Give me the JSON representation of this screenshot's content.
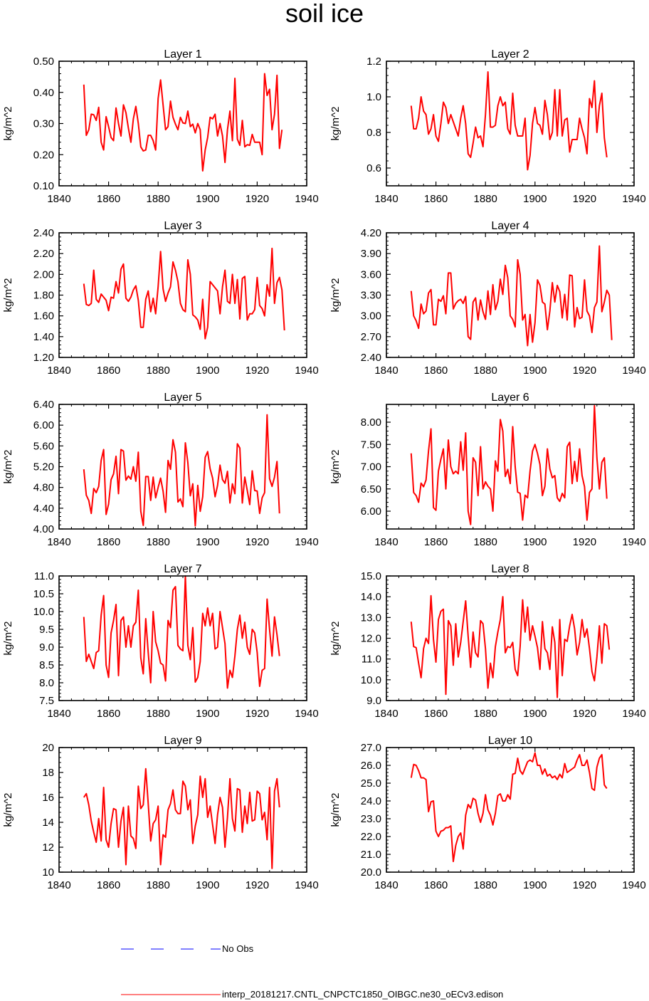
{
  "title": "soil ice",
  "colors": {
    "model": "#ff0000",
    "obs": "#0000ff",
    "axis": "#000000"
  },
  "legend": {
    "obs_label": "No Obs",
    "model_label": "interp_20181217.CNTL_CNPCTC1850_OIBGC.ne30_oECv3.edison"
  },
  "chart_data": [
    {
      "type": "line",
      "title": "Layer 1",
      "ylabel": "kg/m^2",
      "xlim": [
        1840,
        1940
      ],
      "xticks": [
        1840,
        1860,
        1880,
        1900,
        1920,
        1940
      ],
      "ylim": [
        0.1,
        0.5
      ],
      "yticks": [
        0.1,
        0.2,
        0.3,
        0.4,
        0.5
      ],
      "ydec": 2,
      "x_start": 1850,
      "values": [
        0.425,
        0.262,
        0.28,
        0.33,
        0.328,
        0.31,
        0.352,
        0.24,
        0.215,
        0.322,
        0.29,
        0.255,
        0.245,
        0.35,
        0.3,
        0.26,
        0.36,
        0.335,
        0.285,
        0.24,
        0.315,
        0.355,
        0.3,
        0.225,
        0.212,
        0.215,
        0.262,
        0.262,
        0.245,
        0.215,
        0.38,
        0.44,
        0.36,
        0.28,
        0.29,
        0.372,
        0.32,
        0.298,
        0.28,
        0.32,
        0.302,
        0.3,
        0.34,
        0.29,
        0.298,
        0.27,
        0.3,
        0.28,
        0.148,
        0.215,
        0.255,
        0.32,
        0.315,
        0.33,
        0.26,
        0.3,
        0.26,
        0.175,
        0.28,
        0.34,
        0.245,
        0.445,
        0.25,
        0.23,
        0.31,
        0.225,
        0.232,
        0.23,
        0.265,
        0.24,
        0.24,
        0.24,
        0.2,
        0.46,
        0.39,
        0.41,
        0.28,
        0.33,
        0.455,
        0.22,
        0.28
      ]
    },
    {
      "type": "line",
      "title": "Layer 2",
      "ylabel": "kg/m^2",
      "xlim": [
        1840,
        1940
      ],
      "xticks": [
        1840,
        1860,
        1880,
        1900,
        1920,
        1940
      ],
      "ylim": [
        0.5,
        1.2
      ],
      "yticks": [
        0.6,
        0.8,
        1.0,
        1.2
      ],
      "ydec": 1,
      "x_start": 1850,
      "values": [
        0.95,
        0.82,
        0.82,
        0.88,
        1.0,
        0.92,
        0.9,
        0.79,
        0.82,
        0.9,
        0.78,
        0.75,
        0.85,
        0.97,
        0.94,
        0.85,
        0.9,
        0.86,
        0.82,
        0.78,
        0.88,
        0.95,
        0.85,
        0.68,
        0.66,
        0.74,
        0.83,
        0.77,
        0.78,
        0.72,
        0.9,
        1.14,
        0.83,
        0.83,
        0.84,
        0.95,
        1.0,
        0.95,
        0.97,
        0.82,
        0.79,
        1.02,
        0.84,
        0.78,
        0.78,
        0.78,
        0.88,
        0.59,
        0.67,
        0.85,
        0.94,
        0.85,
        0.84,
        0.79,
        0.98,
        0.9,
        0.76,
        0.8,
        1.04,
        0.78,
        1.04,
        0.78,
        0.87,
        0.88,
        0.69,
        0.76,
        0.76,
        0.76,
        0.88,
        0.82,
        0.77,
        0.68,
        0.99,
        0.94,
        1.09,
        0.8,
        0.95,
        1.02,
        0.77,
        0.66
      ]
    },
    {
      "type": "line",
      "title": "Layer 3",
      "ylabel": "kg/m^2",
      "xlim": [
        1840,
        1940
      ],
      "xticks": [
        1840,
        1860,
        1880,
        1900,
        1920,
        1940
      ],
      "ylim": [
        1.2,
        2.4
      ],
      "yticks": [
        1.2,
        1.4,
        1.6,
        1.8,
        2.0,
        2.2,
        2.4
      ],
      "ydec": 2,
      "x_start": 1850,
      "values": [
        1.91,
        1.71,
        1.7,
        1.72,
        2.04,
        1.76,
        1.73,
        1.81,
        1.78,
        1.75,
        1.65,
        1.78,
        1.77,
        1.93,
        1.82,
        2.05,
        2.1,
        1.77,
        1.74,
        1.78,
        1.85,
        1.89,
        1.75,
        1.49,
        1.49,
        1.76,
        1.84,
        1.64,
        1.77,
        1.62,
        1.88,
        2.22,
        1.86,
        1.74,
        1.82,
        1.88,
        2.12,
        2.04,
        1.93,
        1.72,
        1.66,
        1.64,
        2.14,
        2.0,
        1.61,
        1.59,
        1.56,
        1.47,
        1.76,
        1.38,
        1.49,
        1.93,
        1.9,
        1.87,
        1.84,
        1.62,
        1.88,
        2.04,
        1.74,
        1.72,
        2.0,
        1.72,
        1.95,
        1.57,
        1.96,
        1.98,
        1.56,
        1.62,
        1.62,
        1.66,
        1.97,
        1.7,
        1.67,
        1.6,
        1.9,
        1.79,
        2.25,
        1.72,
        1.92,
        1.97,
        1.85,
        1.46
      ]
    },
    {
      "type": "line",
      "title": "Layer 4",
      "ylabel": "kg/m^2",
      "xlim": [
        1840,
        1940
      ],
      "xticks": [
        1840,
        1860,
        1880,
        1900,
        1920,
        1940
      ],
      "ylim": [
        2.4,
        4.2
      ],
      "yticks": [
        2.4,
        2.7,
        3.0,
        3.3,
        3.6,
        3.9,
        4.2
      ],
      "ydec": 2,
      "x_start": 1850,
      "values": [
        3.36,
        3.0,
        2.93,
        2.82,
        3.17,
        3.03,
        3.07,
        3.33,
        3.38,
        2.87,
        2.87,
        3.24,
        3.21,
        3.29,
        3.03,
        3.62,
        3.62,
        3.1,
        3.18,
        3.22,
        3.24,
        3.18,
        3.28,
        2.7,
        2.66,
        3.2,
        3.26,
        2.94,
        3.23,
        3.06,
        2.95,
        3.36,
        3.02,
        3.45,
        3.09,
        3.21,
        3.53,
        3.31,
        3.73,
        3.55,
        3.0,
        2.95,
        2.84,
        3.81,
        3.6,
        2.94,
        3.02,
        2.57,
        3.02,
        2.62,
        2.9,
        3.52,
        3.44,
        3.2,
        3.17,
        2.8,
        3.07,
        3.48,
        3.2,
        3.44,
        3.35,
        2.97,
        3.31,
        2.94,
        3.59,
        3.58,
        2.84,
        3.12,
        2.96,
        2.98,
        3.52,
        3.07,
        3.0,
        2.76,
        3.12,
        3.2,
        4.01,
        3.06,
        3.2,
        3.37,
        3.3,
        2.65
      ]
    },
    {
      "type": "line",
      "title": "Layer 5",
      "ylabel": "kg/m^2",
      "xlim": [
        1840,
        1940
      ],
      "xticks": [
        1840,
        1860,
        1880,
        1900,
        1920,
        1940
      ],
      "ylim": [
        4.0,
        6.4
      ],
      "yticks": [
        4.0,
        4.4,
        4.8,
        5.2,
        5.6,
        6.0,
        6.4
      ],
      "ydec": 2,
      "x_start": 1850,
      "values": [
        5.15,
        4.65,
        4.55,
        4.3,
        4.78,
        4.7,
        4.82,
        5.32,
        5.53,
        4.28,
        4.48,
        4.95,
        5.06,
        5.4,
        4.68,
        5.53,
        5.5,
        4.94,
        5.02,
        4.96,
        5.2,
        4.92,
        5.48,
        4.34,
        4.07,
        5.01,
        5.01,
        4.55,
        5.0,
        4.6,
        4.8,
        4.98,
        4.73,
        4.32,
        5.32,
        5.15,
        5.72,
        5.48,
        4.52,
        4.58,
        4.43,
        5.66,
        5.28,
        4.64,
        4.87,
        4.06,
        4.84,
        4.34,
        4.62,
        5.38,
        5.49,
        5.16,
        4.98,
        4.62,
        4.84,
        5.23,
        4.95,
        4.88,
        5.11,
        4.5,
        4.87,
        4.68,
        5.64,
        5.56,
        4.5,
        5.0,
        4.74,
        4.47,
        5.12,
        4.74,
        4.73,
        4.3,
        4.6,
        4.7,
        6.2,
        4.97,
        4.82,
        5.0,
        5.3,
        4.3
      ]
    },
    {
      "type": "line",
      "title": "Layer 6",
      "ylabel": "kg/m^2",
      "xlim": [
        1840,
        1940
      ],
      "xticks": [
        1840,
        1860,
        1880,
        1900,
        1920,
        1940
      ],
      "ylim": [
        5.6,
        8.4
      ],
      "yticks": [
        6.0,
        6.5,
        7.0,
        7.5,
        8.0
      ],
      "ydec": 2,
      "x_start": 1850,
      "values": [
        7.3,
        6.42,
        6.35,
        6.2,
        6.63,
        6.55,
        6.7,
        7.35,
        7.85,
        6.08,
        6.02,
        6.9,
        7.17,
        7.4,
        6.5,
        7.6,
        7.0,
        6.84,
        6.9,
        6.84,
        7.56,
        6.92,
        7.76,
        6.0,
        5.7,
        7.2,
        7.1,
        6.35,
        7.45,
        6.5,
        6.66,
        6.56,
        6.5,
        6.0,
        7.13,
        6.9,
        8.06,
        7.8,
        6.78,
        6.94,
        6.62,
        7.9,
        7.0,
        6.43,
        6.4,
        5.8,
        6.36,
        6.3,
        6.9,
        7.35,
        7.5,
        7.3,
        7.05,
        6.35,
        6.56,
        7.4,
        6.95,
        6.75,
        6.8,
        6.3,
        6.22,
        6.4,
        6.3,
        7.45,
        7.55,
        6.62,
        7.12,
        6.67,
        7.4,
        6.8,
        6.55,
        5.8,
        6.42,
        6.5,
        8.37,
        7.2,
        6.5,
        7.1,
        7.2,
        6.28
      ]
    },
    {
      "type": "line",
      "title": "Layer 7",
      "ylabel": "kg/m^2",
      "xlim": [
        1840,
        1940
      ],
      "xticks": [
        1840,
        1860,
        1880,
        1900,
        1920,
        1940
      ],
      "ylim": [
        7.5,
        11.0
      ],
      "yticks": [
        7.5,
        8.0,
        8.5,
        9.0,
        9.5,
        10.0,
        10.5,
        11.0
      ],
      "ydec": 1,
      "x_start": 1850,
      "values": [
        9.85,
        8.6,
        8.8,
        8.6,
        8.4,
        8.85,
        8.9,
        9.9,
        10.45,
        8.5,
        8.15,
        9.4,
        9.75,
        10.2,
        8.2,
        9.75,
        9.85,
        9.0,
        9.6,
        9.0,
        9.6,
        9.7,
        10.6,
        8.7,
        8.25,
        9.8,
        8.85,
        8.0,
        10.0,
        9.15,
        8.9,
        8.55,
        8.5,
        8.05,
        9.75,
        9.55,
        10.6,
        10.7,
        9.05,
        8.95,
        8.9,
        11.0,
        9.05,
        8.65,
        9.55,
        8.02,
        8.15,
        8.6,
        9.95,
        9.6,
        10.1,
        9.6,
        9.95,
        8.95,
        9.0,
        10.0,
        9.55,
        9.1,
        7.85,
        8.35,
        8.15,
        8.75,
        9.5,
        9.9,
        9.25,
        9.7,
        9.0,
        8.8,
        9.5,
        9.4,
        8.85,
        7.9,
        8.35,
        8.4,
        10.35,
        9.5,
        8.75,
        9.85,
        9.35,
        8.75
      ]
    },
    {
      "type": "line",
      "title": "Layer 8",
      "ylabel": "kg/m^2",
      "xlim": [
        1840,
        1940
      ],
      "xticks": [
        1840,
        1860,
        1880,
        1900,
        1920,
        1940
      ],
      "ylim": [
        9.0,
        15.0
      ],
      "yticks": [
        9.0,
        10.0,
        11.0,
        12.0,
        13.0,
        14.0,
        15.0
      ],
      "ydec": 1,
      "x_start": 1850,
      "values": [
        12.8,
        11.6,
        11.55,
        10.8,
        10.1,
        11.5,
        12.0,
        11.75,
        14.05,
        11.95,
        10.85,
        12.9,
        13.3,
        13.4,
        9.3,
        12.85,
        12.6,
        10.7,
        12.7,
        11.1,
        11.8,
        12.8,
        13.8,
        12.1,
        10.6,
        12.3,
        11.3,
        11.1,
        12.85,
        12.7,
        11.5,
        9.6,
        10.8,
        10.1,
        11.6,
        12.3,
        12.9,
        14.0,
        11.3,
        11.6,
        11.55,
        11.8,
        10.5,
        10.2,
        11.6,
        13.85,
        12.3,
        13.5,
        11.9,
        12.6,
        12.1,
        11.55,
        10.5,
        12.8,
        11.5,
        11.3,
        10.5,
        12.55,
        11.8,
        9.15,
        12.9,
        10.2,
        11.95,
        11.85,
        12.6,
        13.15,
        12.45,
        11.2,
        11.8,
        12.9,
        12.05,
        12.45,
        11.5,
        10.4,
        9.95,
        11.1,
        12.6,
        10.8,
        12.7,
        12.6,
        11.45
      ]
    },
    {
      "type": "line",
      "title": "Layer 9",
      "ylabel": "kg/m^2",
      "xlim": [
        1840,
        1940
      ],
      "xticks": [
        1840,
        1860,
        1880,
        1900,
        1920,
        1940
      ],
      "ylim": [
        10,
        20
      ],
      "yticks": [
        10,
        12,
        14,
        16,
        18,
        20
      ],
      "ydec": 0,
      "x_start": 1850,
      "values": [
        16.0,
        16.3,
        15.4,
        14.1,
        13.2,
        12.4,
        14.3,
        12.5,
        16.8,
        12.6,
        12.0,
        13.9,
        15.1,
        15.0,
        12.0,
        14.1,
        15.2,
        10.6,
        15.3,
        12.9,
        12.7,
        11.9,
        16.9,
        15.1,
        15.4,
        18.3,
        15.5,
        12.5,
        13.9,
        14.2,
        15.3,
        10.6,
        13.0,
        12.8,
        15.0,
        15.5,
        16.6,
        15.0,
        14.7,
        14.7,
        17.3,
        16.9,
        15.0,
        15.8,
        12.3,
        13.7,
        14.6,
        17.7,
        16.0,
        17.5,
        14.4,
        15.3,
        13.8,
        12.3,
        14.6,
        16.0,
        15.2,
        12.0,
        14.4,
        17.5,
        14.3,
        13.3,
        16.7,
        16.6,
        13.2,
        15.3,
        13.9,
        16.4,
        14.1,
        14.2,
        16.5,
        16.3,
        14.2,
        14.8,
        12.6,
        16.8,
        10.3,
        16.5,
        17.5,
        15.2
      ]
    },
    {
      "type": "line",
      "title": "Layer 10",
      "ylabel": "kg/m^2",
      "xlim": [
        1840,
        1940
      ],
      "xticks": [
        1840,
        1860,
        1880,
        1900,
        1920,
        1940
      ],
      "ylim": [
        20.0,
        27.0
      ],
      "yticks": [
        20.0,
        21.0,
        22.0,
        23.0,
        24.0,
        25.0,
        26.0,
        27.0
      ],
      "ydec": 1,
      "x_start": 1850,
      "values": [
        25.3,
        26.05,
        26.0,
        25.7,
        25.3,
        25.3,
        25.2,
        23.4,
        23.95,
        24.0,
        22.3,
        22.0,
        22.3,
        22.35,
        22.5,
        22.5,
        22.6,
        20.6,
        21.5,
        22.0,
        22.2,
        21.3,
        23.2,
        23.8,
        23.6,
        24.15,
        24.05,
        23.3,
        22.8,
        23.3,
        24.35,
        23.5,
        23.2,
        22.65,
        23.3,
        24.3,
        24.4,
        24.0,
        24.0,
        24.35,
        24.1,
        25.5,
        25.55,
        26.4,
        25.7,
        25.5,
        25.85,
        26.2,
        26.3,
        26.2,
        26.7,
        26.0,
        26.0,
        25.5,
        25.8,
        25.4,
        25.5,
        25.3,
        25.4,
        25.2,
        25.5,
        25.3,
        26.1,
        25.6,
        25.7,
        25.8,
        25.9,
        26.3,
        26.6,
        26.0,
        26.0,
        26.3,
        25.6,
        24.7,
        24.6,
        25.9,
        26.4,
        26.6,
        24.9,
        24.7
      ]
    }
  ]
}
